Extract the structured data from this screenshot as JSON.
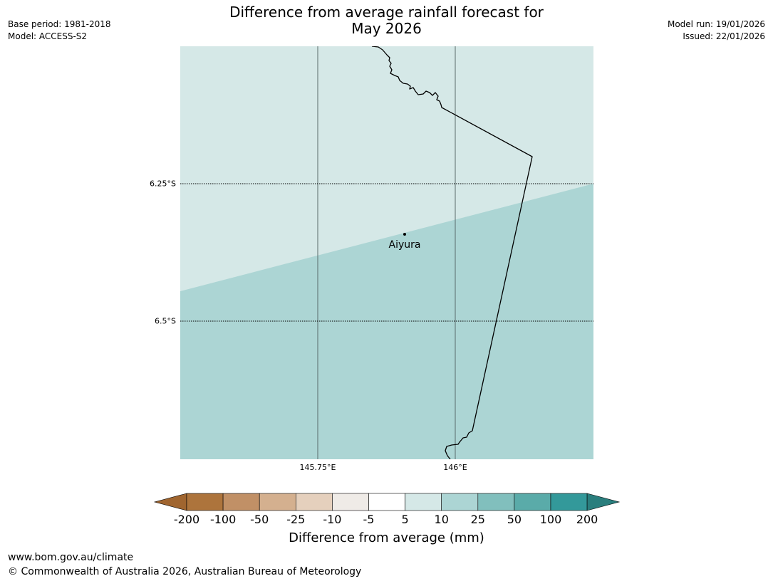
{
  "header": {
    "title_line1": "Difference from average rainfall forecast for",
    "title_line2": "May 2026",
    "base_period": "Base period: 1981-2018",
    "model": "Model: ACCESS-S2",
    "model_run": "Model run: 19/01/2026",
    "issued": "Issued: 22/01/2026"
  },
  "map": {
    "lat_ticks": [
      "6.25°S",
      "6.5°S"
    ],
    "lon_ticks": [
      "145.75°E",
      "146°E"
    ],
    "town": "Aiyura",
    "zones": [
      {
        "category": "5 to 10",
        "color": "#d5e8e7"
      },
      {
        "category": "10 to 25",
        "color": "#acd5d4"
      }
    ]
  },
  "legend": {
    "ticks": [
      "-200",
      "-100",
      "-50",
      "-25",
      "-10",
      "-5",
      "5",
      "10",
      "25",
      "50",
      "100",
      "200"
    ],
    "colors": [
      "#a0652f",
      "#ad743c",
      "#c19066",
      "#d4b08f",
      "#e5d0bd",
      "#efebe7",
      "#ffffff",
      "#d5e8e7",
      "#acd5d4",
      "#81bfbd",
      "#5aaba9",
      "#33999a",
      "#2a7e7d"
    ],
    "label": "Difference from average (mm)"
  },
  "footer": {
    "url": "www.bom.gov.au/climate",
    "copyright": "© Commonwealth of Australia 2026, Australian Bureau of Meteorology"
  }
}
